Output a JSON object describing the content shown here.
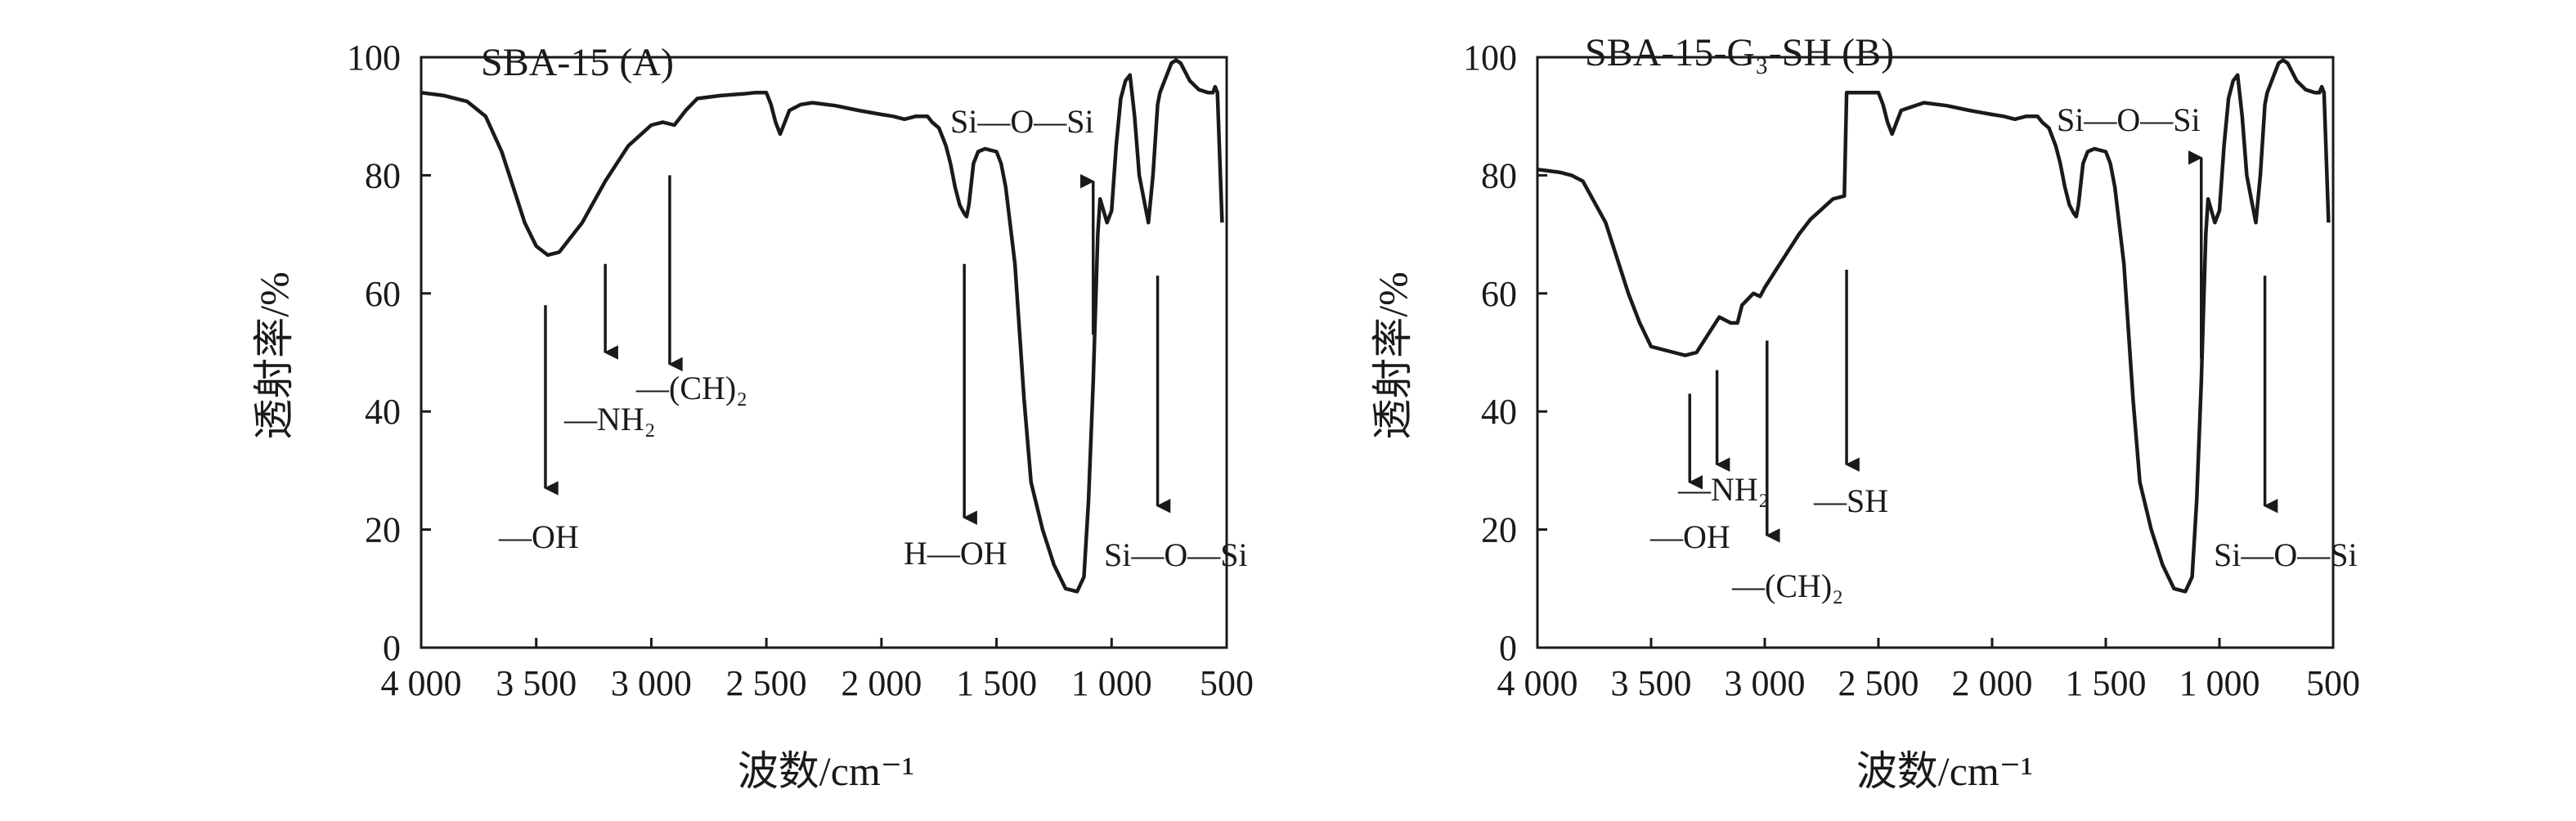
{
  "chart_data": [
    {
      "type": "line",
      "title": "SBA-15 (A)",
      "xlabel": "波数/cm⁻¹",
      "ylabel": "透射率/%",
      "xlim": [
        4000,
        500
      ],
      "ylim": [
        0,
        100
      ],
      "xticks": [
        4000,
        3500,
        3000,
        2500,
        2000,
        1500,
        1000,
        500
      ],
      "xtick_labels": [
        "4 000",
        "3 500",
        "3 000",
        "2 500",
        "2 000",
        "1 500",
        "1 000",
        "500"
      ],
      "yticks": [
        0,
        20,
        40,
        60,
        80,
        100
      ],
      "ytick_labels": [
        "0",
        "20",
        "40",
        "60",
        "80",
        "100"
      ],
      "grid": false,
      "series": [
        {
          "x": [
            4000,
            3900,
            3800,
            3720,
            3650,
            3600,
            3550,
            3500,
            3450,
            3400,
            3300,
            3200,
            3100,
            3000,
            2950,
            2900,
            2850,
            2800,
            2700,
            2600,
            2550,
            2500,
            2480,
            2460,
            2440,
            2420,
            2400,
            2350,
            2300,
            2200,
            2100,
            2000,
            1950,
            1900,
            1850,
            1800,
            1780,
            1750,
            1720,
            1700,
            1680,
            1660,
            1640,
            1630,
            1620,
            1600,
            1580,
            1550,
            1500,
            1480,
            1460,
            1420,
            1380,
            1350,
            1300,
            1250,
            1200,
            1150,
            1120,
            1100,
            1080,
            1060,
            1050,
            1020,
            1000,
            980,
            960,
            940,
            920,
            900,
            880,
            860,
            840,
            820,
            800,
            790,
            780,
            760,
            740,
            720,
            700,
            660,
            620,
            580,
            560,
            550,
            540,
            520
          ],
          "y": [
            94,
            93.5,
            92.5,
            90,
            84,
            78,
            72,
            68,
            66.5,
            67,
            72,
            79,
            85,
            88.5,
            89,
            88.5,
            91,
            93,
            93.5,
            93.8,
            94,
            94,
            92,
            89,
            87,
            89,
            91,
            92,
            92.3,
            91.8,
            91,
            90.3,
            90,
            89.5,
            90,
            90,
            89,
            88,
            85,
            82,
            78,
            75,
            73.5,
            73,
            75,
            82,
            84,
            84.5,
            84,
            82,
            78,
            65,
            42,
            28,
            20,
            14,
            10,
            9.5,
            12,
            25,
            45,
            70,
            76,
            72,
            74,
            85,
            93,
            96,
            97,
            90,
            80,
            76,
            72,
            80,
            92,
            94,
            95,
            97,
            99,
            99.5,
            99,
            96,
            94.5,
            94,
            94,
            95,
            94,
            72
          ]
        }
      ],
      "annotations": [
        {
          "text": "—OH",
          "x": 3460,
          "arrow": "down"
        },
        {
          "text": "—NH₂",
          "x": 3200,
          "arrow": "down"
        },
        {
          "text": "—(CH)₂",
          "x": 2920,
          "arrow": "down"
        },
        {
          "text": "H—OH",
          "x": 1640,
          "arrow": "down"
        },
        {
          "text": "Si—O—Si",
          "x": 1080,
          "arrow": "up"
        },
        {
          "text": "Si—O—Si",
          "x": 800,
          "arrow": "down"
        }
      ]
    },
    {
      "type": "line",
      "title": "SBA-15-G₃-SH (B)",
      "xlabel": "波数/cm⁻¹",
      "ylabel": "透射率/%",
      "xlim": [
        4000,
        500
      ],
      "ylim": [
        0,
        100
      ],
      "xticks": [
        4000,
        3500,
        3000,
        2500,
        2000,
        1500,
        1000,
        500
      ],
      "xtick_labels": [
        "4 000",
        "3 500",
        "3 000",
        "2 500",
        "2 000",
        "1 500",
        "1 000",
        "500"
      ],
      "yticks": [
        0,
        20,
        40,
        60,
        80,
        100
      ],
      "ytick_labels": [
        "0",
        "20",
        "40",
        "60",
        "80",
        "100"
      ],
      "grid": false,
      "series": [
        {
          "x": [
            4000,
            3900,
            3850,
            3800,
            3700,
            3600,
            3550,
            3500,
            3400,
            3350,
            3300,
            3250,
            3200,
            3150,
            3120,
            3100,
            3050,
            3020,
            3000,
            2950,
            2900,
            2850,
            2800,
            2700,
            2650,
            2640,
            2600,
            2500,
            2480,
            2460,
            2440,
            2420,
            2400,
            2300,
            2200,
            2100,
            2000,
            1950,
            1900,
            1850,
            1800,
            1780,
            1750,
            1720,
            1700,
            1680,
            1660,
            1640,
            1630,
            1620,
            1600,
            1580,
            1550,
            1500,
            1480,
            1460,
            1420,
            1380,
            1350,
            1300,
            1250,
            1200,
            1150,
            1120,
            1100,
            1080,
            1060,
            1050,
            1020,
            1000,
            980,
            960,
            940,
            920,
            900,
            880,
            860,
            840,
            820,
            800,
            790,
            780,
            760,
            740,
            720,
            700,
            660,
            620,
            580,
            560,
            550,
            540,
            520
          ],
          "y": [
            81,
            80.5,
            80,
            79,
            72,
            60,
            55,
            51,
            50,
            49.5,
            50,
            53,
            56,
            55,
            55,
            58,
            60,
            59.5,
            61,
            64,
            67,
            70,
            72.5,
            76,
            76.5,
            94,
            94,
            94,
            92,
            89,
            87,
            89,
            91,
            92.3,
            91.8,
            91,
            90.3,
            90,
            89.5,
            90,
            90,
            89,
            88,
            85,
            82,
            78,
            75,
            73.5,
            73,
            75,
            82,
            84,
            84.5,
            84,
            82,
            78,
            65,
            42,
            28,
            20,
            14,
            10,
            9.5,
            12,
            25,
            45,
            70,
            76,
            72,
            74,
            85,
            93,
            96,
            97,
            90,
            80,
            76,
            72,
            80,
            92,
            94,
            95,
            97,
            99,
            99.5,
            99,
            96,
            94.5,
            94,
            94,
            95,
            94,
            72
          ]
        }
      ],
      "annotations": [
        {
          "text": "—NH₂",
          "x": 3210,
          "arrow": "down"
        },
        {
          "text": "—OH",
          "x": 3330,
          "arrow": "down"
        },
        {
          "text": "—(CH)₂",
          "x": 2990,
          "arrow": "down"
        },
        {
          "text": "—SH",
          "x": 2640,
          "arrow": "down"
        },
        {
          "text": "Si—O—Si",
          "x": 1080,
          "arrow": "up"
        },
        {
          "text": "Si—O—Si",
          "x": 800,
          "arrow": "down"
        }
      ]
    }
  ]
}
